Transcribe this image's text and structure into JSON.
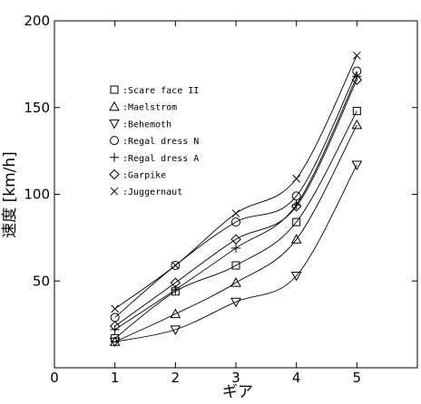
{
  "chart_data": {
    "type": "line",
    "xlabel": "ギア",
    "ylabel": "速度 [km/h]",
    "xlim": [
      0,
      6
    ],
    "ylim": [
      0,
      200
    ],
    "xticks": [
      0,
      1,
      2,
      3,
      4,
      5
    ],
    "yticks": [
      50,
      100,
      150,
      200
    ],
    "grid": false,
    "legend_placement": "top-left",
    "x": [
      1,
      2,
      3,
      4,
      5
    ],
    "series": [
      {
        "name": "Scare face II",
        "marker": "square",
        "values": [
          17,
          44,
          59,
          84,
          148
        ]
      },
      {
        "name": "Maelstrom",
        "marker": "triangle-up",
        "values": [
          15,
          31,
          49,
          74,
          140
        ]
      },
      {
        "name": "Behemoth",
        "marker": "triangle-down",
        "values": [
          15,
          22,
          38,
          53,
          117
        ]
      },
      {
        "name": "Regal dress N",
        "marker": "circle",
        "values": [
          29,
          59,
          84,
          99,
          171
        ]
      },
      {
        "name": "Regal dress A",
        "marker": "plus",
        "values": [
          22,
          45,
          69,
          94,
          168
        ]
      },
      {
        "name": "Garpike",
        "marker": "diamond",
        "values": [
          24,
          49,
          74,
          93,
          166
        ]
      },
      {
        "name": "Juggernaut",
        "marker": "cross",
        "values": [
          34,
          59,
          89,
          109,
          180
        ]
      }
    ]
  }
}
